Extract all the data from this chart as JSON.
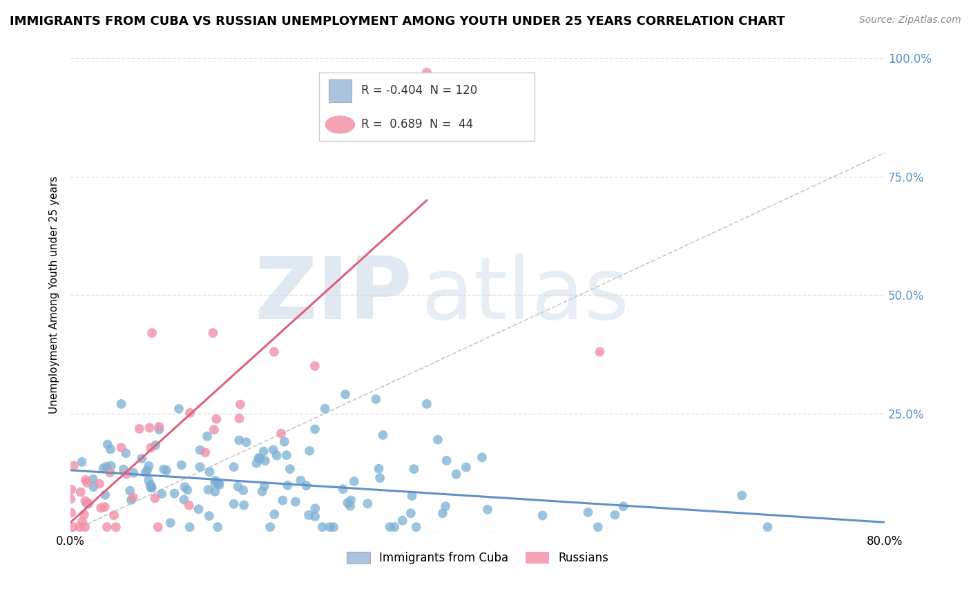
{
  "title": "IMMIGRANTS FROM CUBA VS RUSSIAN UNEMPLOYMENT AMONG YOUTH UNDER 25 YEARS CORRELATION CHART",
  "source": "Source: ZipAtlas.com",
  "ylabel": "Unemployment Among Youth under 25 years",
  "xlim": [
    0.0,
    0.8
  ],
  "ylim": [
    0.0,
    1.0
  ],
  "ytick_labels_right": [
    "",
    "25.0%",
    "50.0%",
    "75.0%",
    "100.0%"
  ],
  "yticks_right": [
    0.0,
    0.25,
    0.5,
    0.75,
    1.0
  ],
  "legend_entries": [
    {
      "label": "Immigrants from Cuba",
      "color": "#aac4e0",
      "r": "-0.404",
      "n": "120"
    },
    {
      "label": "Russians",
      "color": "#f4a0b5",
      "r": "0.689",
      "n": "44"
    }
  ],
  "blue_color": "#7bafd4",
  "pink_color": "#f090a8",
  "blue_line_color": "#6090c8",
  "pink_line_color": "#e0607a",
  "diag_line_color": "#b8b8b8",
  "background_color": "#ffffff",
  "grid_color": "#d8d8d8",
  "title_fontsize": 13,
  "source_fontsize": 10,
  "blue_trend_x": [
    0.0,
    0.8
  ],
  "blue_trend_y": [
    0.13,
    0.02
  ],
  "pink_trend_x": [
    0.0,
    0.35
  ],
  "pink_trend_y": [
    0.02,
    0.7
  ]
}
